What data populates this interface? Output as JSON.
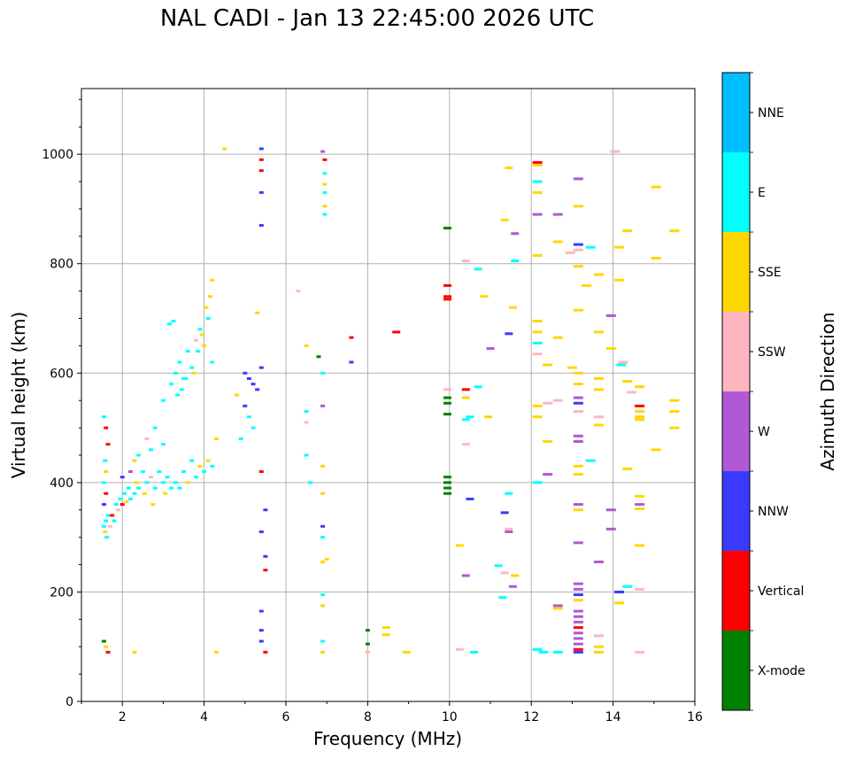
{
  "chart_data": {
    "type": "scatter",
    "title": "NAL CADI - Jan 13 22:45:00 2026 UTC",
    "xlabel": "Frequency (MHz)",
    "ylabel": "Virtual height (km)",
    "xlim": [
      1,
      16
    ],
    "ylim": [
      0,
      1120
    ],
    "xticks": [
      2,
      4,
      6,
      8,
      10,
      12,
      14,
      16
    ],
    "yticks": [
      0,
      200,
      400,
      600,
      800,
      1000
    ],
    "grid": true,
    "colorbar_label": "Azimuth Direction",
    "legend": [
      {
        "name": "X-mode",
        "color": "#008000"
      },
      {
        "name": "Vertical",
        "color": "#ff0000"
      },
      {
        "name": "NNW",
        "color": "#3a3aff"
      },
      {
        "name": "W",
        "color": "#b058d6"
      },
      {
        "name": "SSW",
        "color": "#ffb6c1"
      },
      {
        "name": "SSE",
        "color": "#ffd700"
      },
      {
        "name": "E",
        "color": "#00ffff"
      },
      {
        "name": "NNE",
        "color": "#00bfff"
      }
    ],
    "points": [
      [
        1.55,
        320,
        "E"
      ],
      [
        1.6,
        330,
        "E"
      ],
      [
        1.65,
        340,
        "E"
      ],
      [
        1.58,
        310,
        "SSE"
      ],
      [
        1.62,
        300,
        "E"
      ],
      [
        1.7,
        320,
        "SSW"
      ],
      [
        1.75,
        340,
        "Vertical"
      ],
      [
        1.8,
        330,
        "E"
      ],
      [
        1.85,
        360,
        "E"
      ],
      [
        1.9,
        350,
        "SSW"
      ],
      [
        1.95,
        370,
        "E"
      ],
      [
        2.0,
        360,
        "Vertical"
      ],
      [
        2.05,
        380,
        "E"
      ],
      [
        2.1,
        365,
        "SSE"
      ],
      [
        2.15,
        390,
        "E"
      ],
      [
        2.2,
        370,
        "E"
      ],
      [
        2.3,
        380,
        "E"
      ],
      [
        2.35,
        400,
        "SSE"
      ],
      [
        2.4,
        390,
        "E"
      ],
      [
        2.5,
        420,
        "E"
      ],
      [
        2.55,
        380,
        "SSE"
      ],
      [
        2.6,
        400,
        "E"
      ],
      [
        2.7,
        410,
        "SSW"
      ],
      [
        2.75,
        360,
        "SSE"
      ],
      [
        2.8,
        390,
        "E"
      ],
      [
        2.9,
        420,
        "E"
      ],
      [
        3.0,
        400,
        "E"
      ],
      [
        3.05,
        380,
        "SSE"
      ],
      [
        3.1,
        410,
        "E"
      ],
      [
        3.2,
        390,
        "E"
      ],
      [
        3.3,
        400,
        "E"
      ],
      [
        3.4,
        390,
        "E"
      ],
      [
        3.5,
        420,
        "E"
      ],
      [
        3.6,
        400,
        "SSE"
      ],
      [
        3.7,
        440,
        "E"
      ],
      [
        3.8,
        410,
        "E"
      ],
      [
        3.9,
        430,
        "SSE"
      ],
      [
        4.0,
        420,
        "E"
      ],
      [
        4.1,
        440,
        "SSE"
      ],
      [
        4.2,
        430,
        "E"
      ],
      [
        4.3,
        480,
        "SSE"
      ],
      [
        2.0,
        410,
        "NNW"
      ],
      [
        2.2,
        420,
        "W"
      ],
      [
        2.4,
        450,
        "E"
      ],
      [
        2.6,
        480,
        "SSW"
      ],
      [
        2.8,
        500,
        "E"
      ],
      [
        3.0,
        470,
        "E"
      ],
      [
        2.3,
        440,
        "SSE"
      ],
      [
        2.7,
        460,
        "E"
      ],
      [
        1.55,
        520,
        "E"
      ],
      [
        1.6,
        500,
        "Vertical"
      ],
      [
        1.65,
        470,
        "Vertical"
      ],
      [
        1.58,
        440,
        "E"
      ],
      [
        1.6,
        420,
        "SSE"
      ],
      [
        1.55,
        400,
        "E"
      ],
      [
        1.6,
        380,
        "Vertical"
      ],
      [
        1.55,
        360,
        "NNW"
      ],
      [
        3.0,
        550,
        "E"
      ],
      [
        3.2,
        580,
        "E"
      ],
      [
        3.3,
        600,
        "E"
      ],
      [
        3.4,
        620,
        "E"
      ],
      [
        3.5,
        590,
        "E"
      ],
      [
        3.6,
        640,
        "E"
      ],
      [
        3.7,
        610,
        "E"
      ],
      [
        3.8,
        660,
        "SSW"
      ],
      [
        3.9,
        680,
        "E"
      ],
      [
        4.0,
        650,
        "SSE"
      ],
      [
        4.1,
        700,
        "E"
      ],
      [
        4.2,
        620,
        "E"
      ],
      [
        4.05,
        720,
        "SSE"
      ],
      [
        3.95,
        670,
        "SSE"
      ],
      [
        3.85,
        640,
        "E"
      ],
      [
        3.75,
        600,
        "SSE"
      ],
      [
        3.35,
        560,
        "E"
      ],
      [
        3.45,
        570,
        "E"
      ],
      [
        3.55,
        590,
        "E"
      ],
      [
        3.15,
        690,
        "E"
      ],
      [
        3.25,
        695,
        "E"
      ],
      [
        4.15,
        740,
        "SSE"
      ],
      [
        4.2,
        770,
        "SSE"
      ],
      [
        5.0,
        600,
        "NNW"
      ],
      [
        5.1,
        590,
        "NNW"
      ],
      [
        5.2,
        580,
        "NNW"
      ],
      [
        5.3,
        570,
        "NNW"
      ],
      [
        5.4,
        610,
        "NNW"
      ],
      [
        5.0,
        540,
        "NNW"
      ],
      [
        5.1,
        520,
        "E"
      ],
      [
        5.2,
        500,
        "E"
      ],
      [
        4.8,
        560,
        "SSE"
      ],
      [
        4.9,
        480,
        "E"
      ],
      [
        5.4,
        420,
        "Vertical"
      ],
      [
        5.4,
        1010,
        "NNW"
      ],
      [
        5.4,
        990,
        "Vertical"
      ],
      [
        5.4,
        970,
        "Vertical"
      ],
      [
        5.4,
        930,
        "NNW"
      ],
      [
        5.4,
        870,
        "NNW"
      ],
      [
        4.5,
        1010,
        "SSE"
      ],
      [
        5.3,
        710,
        "SSE"
      ],
      [
        5.5,
        350,
        "NNW"
      ],
      [
        5.4,
        310,
        "NNW"
      ],
      [
        5.5,
        265,
        "NNW"
      ],
      [
        5.5,
        240,
        "Vertical"
      ],
      [
        5.4,
        165,
        "NNW"
      ],
      [
        5.4,
        130,
        "NNW"
      ],
      [
        5.4,
        110,
        "NNW"
      ],
      [
        5.5,
        90,
        "Vertical"
      ],
      [
        6.3,
        750,
        "SSW"
      ],
      [
        6.5,
        650,
        "SSE"
      ],
      [
        6.5,
        530,
        "E"
      ],
      [
        6.5,
        510,
        "SSW"
      ],
      [
        6.5,
        450,
        "E"
      ],
      [
        6.6,
        400,
        "E"
      ],
      [
        6.8,
        630,
        "X-mode"
      ],
      [
        6.9,
        600,
        "E"
      ],
      [
        6.9,
        540,
        "W"
      ],
      [
        6.9,
        430,
        "SSE"
      ],
      [
        6.9,
        380,
        "SSE"
      ],
      [
        6.9,
        320,
        "NNW"
      ],
      [
        6.9,
        300,
        "E"
      ],
      [
        6.9,
        255,
        "SSE"
      ],
      [
        7.0,
        260,
        "SSE"
      ],
      [
        6.9,
        195,
        "E"
      ],
      [
        6.9,
        175,
        "SSE"
      ],
      [
        6.9,
        110,
        "E"
      ],
      [
        6.9,
        90,
        "SSE"
      ],
      [
        6.9,
        1005,
        "W"
      ],
      [
        6.95,
        990,
        "Vertical"
      ],
      [
        6.95,
        965,
        "E"
      ],
      [
        6.95,
        945,
        "SSE"
      ],
      [
        6.95,
        930,
        "E"
      ],
      [
        6.95,
        905,
        "SSE"
      ],
      [
        6.95,
        890,
        "E"
      ],
      [
        7.6,
        665,
        "Vertical"
      ],
      [
        7.6,
        620,
        "NNW"
      ],
      [
        8.7,
        675,
        "Vertical"
      ],
      [
        8.0,
        130,
        "X-mode"
      ],
      [
        8.0,
        105,
        "X-mode"
      ],
      [
        8.45,
        135,
        "SSE"
      ],
      [
        8.45,
        122,
        "SSE"
      ],
      [
        8.95,
        90,
        "SSE"
      ],
      [
        8.0,
        90,
        "SSW"
      ],
      [
        2.3,
        90,
        "SSE"
      ],
      [
        4.3,
        90,
        "SSE"
      ],
      [
        1.55,
        110,
        "X-mode"
      ],
      [
        1.6,
        100,
        "SSE"
      ],
      [
        1.65,
        90,
        "Vertical"
      ],
      [
        9.95,
        865,
        "X-mode"
      ],
      [
        9.95,
        760,
        "Vertical"
      ],
      [
        9.95,
        740,
        "Vertical"
      ],
      [
        9.95,
        735,
        "Vertical"
      ],
      [
        9.95,
        570,
        "SSW"
      ],
      [
        9.95,
        555,
        "X-mode"
      ],
      [
        9.95,
        545,
        "X-mode"
      ],
      [
        9.95,
        525,
        "X-mode"
      ],
      [
        9.95,
        410,
        "X-mode"
      ],
      [
        9.95,
        400,
        "X-mode"
      ],
      [
        9.95,
        390,
        "X-mode"
      ],
      [
        9.95,
        380,
        "X-mode"
      ],
      [
        10.4,
        570,
        "Vertical"
      ],
      [
        10.4,
        555,
        "SSE"
      ],
      [
        10.5,
        520,
        "E"
      ],
      [
        10.4,
        515,
        "E"
      ],
      [
        10.4,
        470,
        "SSW"
      ],
      [
        10.5,
        370,
        "NNW"
      ],
      [
        10.25,
        285,
        "SSE"
      ],
      [
        10.4,
        230,
        "W"
      ],
      [
        10.25,
        95,
        "SSW"
      ],
      [
        10.6,
        90,
        "E"
      ],
      [
        10.7,
        575,
        "E"
      ],
      [
        10.85,
        740,
        "SSE"
      ],
      [
        10.7,
        790,
        "E"
      ],
      [
        10.4,
        805,
        "SSW"
      ],
      [
        10.95,
        520,
        "SSE"
      ],
      [
        11.0,
        645,
        "W"
      ],
      [
        11.35,
        880,
        "SSE"
      ],
      [
        11.45,
        975,
        "SSE"
      ],
      [
        11.6,
        805,
        "E"
      ],
      [
        11.55,
        720,
        "SSE"
      ],
      [
        11.45,
        672,
        "NNW"
      ],
      [
        11.45,
        380,
        "E"
      ],
      [
        11.35,
        345,
        "NNW"
      ],
      [
        11.45,
        315,
        "SSW"
      ],
      [
        11.45,
        310,
        "W"
      ],
      [
        11.2,
        248,
        "E"
      ],
      [
        11.35,
        235,
        "SSW"
      ],
      [
        11.6,
        230,
        "SSE"
      ],
      [
        11.55,
        210,
        "W"
      ],
      [
        11.3,
        190,
        "E"
      ],
      [
        11.6,
        855,
        "W"
      ],
      [
        12.15,
        985,
        "Vertical"
      ],
      [
        12.15,
        980,
        "SSE"
      ],
      [
        12.15,
        950,
        "E"
      ],
      [
        12.15,
        930,
        "SSE"
      ],
      [
        12.15,
        890,
        "W"
      ],
      [
        12.15,
        815,
        "SSE"
      ],
      [
        12.15,
        695,
        "SSE"
      ],
      [
        12.15,
        675,
        "SSE"
      ],
      [
        12.15,
        655,
        "E"
      ],
      [
        12.15,
        635,
        "SSW"
      ],
      [
        12.4,
        615,
        "SSE"
      ],
      [
        12.15,
        520,
        "SSE"
      ],
      [
        12.15,
        540,
        "SSE"
      ],
      [
        12.4,
        545,
        "SSW"
      ],
      [
        12.65,
        550,
        "SSW"
      ],
      [
        12.4,
        475,
        "SSE"
      ],
      [
        12.4,
        415,
        "W"
      ],
      [
        12.15,
        400,
        "E"
      ],
      [
        12.15,
        95,
        "E"
      ],
      [
        12.3,
        90,
        "E"
      ],
      [
        12.65,
        90,
        "E"
      ],
      [
        12.65,
        890,
        "W"
      ],
      [
        12.65,
        840,
        "SSE"
      ],
      [
        12.95,
        820,
        "SSW"
      ],
      [
        12.65,
        665,
        "SSE"
      ],
      [
        13.0,
        610,
        "SSE"
      ],
      [
        12.65,
        175,
        "W"
      ],
      [
        12.65,
        170,
        "SSE"
      ],
      [
        13.15,
        955,
        "W"
      ],
      [
        13.15,
        905,
        "SSE"
      ],
      [
        13.15,
        835,
        "NNW"
      ],
      [
        13.15,
        825,
        "SSW"
      ],
      [
        13.45,
        830,
        "E"
      ],
      [
        13.15,
        795,
        "SSE"
      ],
      [
        13.35,
        760,
        "SSE"
      ],
      [
        13.65,
        780,
        "SSE"
      ],
      [
        13.15,
        715,
        "SSE"
      ],
      [
        13.65,
        675,
        "SSE"
      ],
      [
        13.15,
        600,
        "SSE"
      ],
      [
        13.15,
        580,
        "SSE"
      ],
      [
        13.65,
        590,
        "SSE"
      ],
      [
        13.65,
        570,
        "SSE"
      ],
      [
        13.15,
        555,
        "W"
      ],
      [
        13.15,
        545,
        "NNW"
      ],
      [
        13.15,
        530,
        "SSW"
      ],
      [
        13.65,
        520,
        "SSW"
      ],
      [
        13.65,
        505,
        "SSE"
      ],
      [
        13.15,
        485,
        "W"
      ],
      [
        13.15,
        475,
        "W"
      ],
      [
        13.45,
        440,
        "E"
      ],
      [
        13.15,
        430,
        "SSE"
      ],
      [
        13.15,
        415,
        "SSE"
      ],
      [
        13.15,
        360,
        "W"
      ],
      [
        13.15,
        350,
        "SSE"
      ],
      [
        13.15,
        290,
        "W"
      ],
      [
        13.65,
        255,
        "W"
      ],
      [
        13.15,
        215,
        "W"
      ],
      [
        13.15,
        205,
        "W"
      ],
      [
        13.15,
        195,
        "NNW"
      ],
      [
        13.15,
        185,
        "SSE"
      ],
      [
        13.15,
        165,
        "W"
      ],
      [
        13.15,
        155,
        "W"
      ],
      [
        13.15,
        145,
        "W"
      ],
      [
        13.15,
        135,
        "Vertical"
      ],
      [
        13.15,
        125,
        "W"
      ],
      [
        13.15,
        115,
        "W"
      ],
      [
        13.15,
        105,
        "W"
      ],
      [
        13.15,
        95,
        "Vertical"
      ],
      [
        13.15,
        90,
        "NNW"
      ],
      [
        13.65,
        120,
        "SSW"
      ],
      [
        13.65,
        100,
        "SSE"
      ],
      [
        13.65,
        90,
        "SSE"
      ],
      [
        14.05,
        1005,
        "SSW"
      ],
      [
        14.15,
        830,
        "SSE"
      ],
      [
        14.35,
        860,
        "SSE"
      ],
      [
        14.15,
        770,
        "SSE"
      ],
      [
        13.95,
        705,
        "W"
      ],
      [
        13.95,
        645,
        "SSE"
      ],
      [
        14.25,
        620,
        "SSW"
      ],
      [
        14.2,
        615,
        "E"
      ],
      [
        14.35,
        585,
        "SSE"
      ],
      [
        14.45,
        565,
        "SSW"
      ],
      [
        14.65,
        575,
        "SSE"
      ],
      [
        14.65,
        540,
        "Vertical"
      ],
      [
        14.65,
        530,
        "SSE"
      ],
      [
        14.65,
        520,
        "SSE"
      ],
      [
        14.65,
        515,
        "SSE"
      ],
      [
        14.35,
        425,
        "SSE"
      ],
      [
        14.65,
        375,
        "SSE"
      ],
      [
        14.65,
        360,
        "W"
      ],
      [
        14.65,
        352,
        "SSE"
      ],
      [
        13.95,
        350,
        "W"
      ],
      [
        13.95,
        315,
        "W"
      ],
      [
        14.65,
        285,
        "SSE"
      ],
      [
        14.35,
        210,
        "E"
      ],
      [
        14.65,
        205,
        "SSW"
      ],
      [
        14.15,
        200,
        "NNW"
      ],
      [
        14.15,
        180,
        "SSE"
      ],
      [
        14.65,
        90,
        "SSW"
      ],
      [
        15.05,
        940,
        "SSE"
      ],
      [
        15.05,
        810,
        "SSE"
      ],
      [
        15.5,
        860,
        "SSE"
      ],
      [
        15.5,
        550,
        "SSE"
      ],
      [
        15.5,
        530,
        "SSE"
      ],
      [
        15.5,
        500,
        "SSE"
      ],
      [
        15.05,
        460,
        "SSE"
      ]
    ]
  }
}
